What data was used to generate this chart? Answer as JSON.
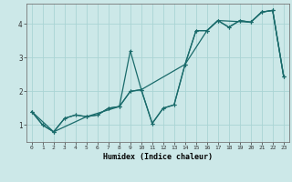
{
  "xlabel": "Humidex (Indice chaleur)",
  "background_color": "#cce8e8",
  "grid_color": "#aad4d4",
  "line_color": "#1a6b6b",
  "xlim": [
    -0.5,
    23.5
  ],
  "ylim": [
    0.5,
    4.6
  ],
  "yticks": [
    1,
    2,
    3,
    4
  ],
  "xticks": [
    0,
    1,
    2,
    3,
    4,
    5,
    6,
    7,
    8,
    9,
    10,
    11,
    12,
    13,
    14,
    15,
    16,
    17,
    18,
    19,
    20,
    21,
    22,
    23
  ],
  "series1_x": [
    0,
    1,
    2,
    3,
    4,
    5,
    6,
    7,
    8,
    9,
    10,
    11,
    12,
    13,
    14,
    15,
    16,
    17,
    18,
    19,
    20,
    21,
    22,
    23
  ],
  "series1_y": [
    1.4,
    1.0,
    0.8,
    1.2,
    1.3,
    1.25,
    1.3,
    1.5,
    1.55,
    3.2,
    2.05,
    1.05,
    1.5,
    1.6,
    2.8,
    3.8,
    3.8,
    4.1,
    3.9,
    4.1,
    4.05,
    4.35,
    4.4,
    2.45
  ],
  "series2_x": [
    0,
    1,
    2,
    3,
    4,
    5,
    6,
    7,
    8,
    9,
    10,
    11,
    12,
    13,
    14,
    15,
    16,
    17,
    18,
    19,
    20,
    21,
    22,
    23
  ],
  "series2_y": [
    1.4,
    1.0,
    0.8,
    1.2,
    1.3,
    1.25,
    1.3,
    1.5,
    1.55,
    2.0,
    2.05,
    1.05,
    1.5,
    1.6,
    2.8,
    3.8,
    3.8,
    4.1,
    3.9,
    4.1,
    4.05,
    4.35,
    4.4,
    2.45
  ],
  "series3_x": [
    0,
    2,
    5,
    8,
    9,
    10,
    14,
    16,
    17,
    20,
    21,
    22,
    23
  ],
  "series3_y": [
    1.4,
    0.8,
    1.25,
    1.55,
    2.0,
    2.05,
    2.8,
    3.8,
    4.1,
    4.05,
    4.35,
    4.4,
    2.45
  ],
  "xlabel_fontsize": 6,
  "tick_fontsize": 4.5,
  "linewidth": 0.9,
  "marker_size": 3.0
}
